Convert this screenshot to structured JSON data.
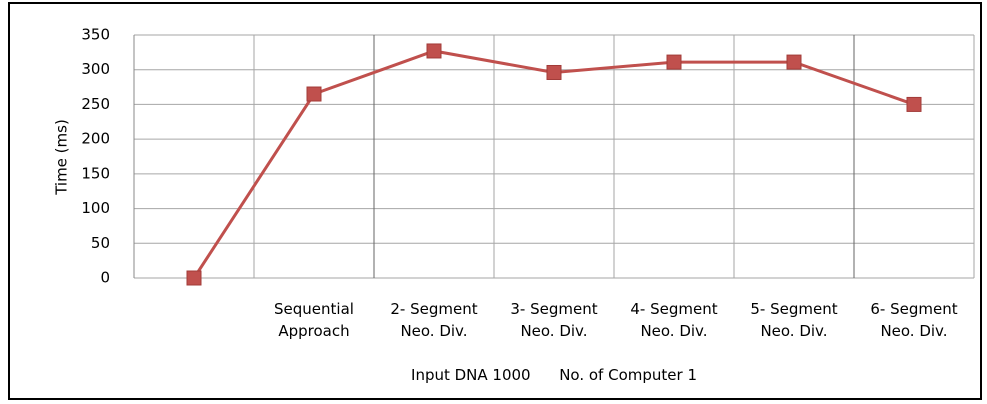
{
  "chart_data": {
    "type": "line",
    "y_label": "Time (ms)",
    "x_label": "Input DNA 1000      No. of Computer 1",
    "categories": [
      null,
      "Sequential\nApproach",
      "2- Segment\nNeo. Div.",
      "3- Segment\nNeo. Div.",
      "4- Segment\nNeo. Div.",
      "5- Segment\nNeo. Div.",
      "6- Segment\nNeo. Div."
    ],
    "series": [
      {
        "name": "Time",
        "color": "#c0504d",
        "values": [
          0,
          265,
          327,
          296,
          311,
          311,
          250
        ]
      }
    ],
    "ylim": [
      0,
      350
    ],
    "yticks": [
      0,
      50,
      100,
      150,
      200,
      250,
      300,
      350
    ],
    "grid": true
  }
}
